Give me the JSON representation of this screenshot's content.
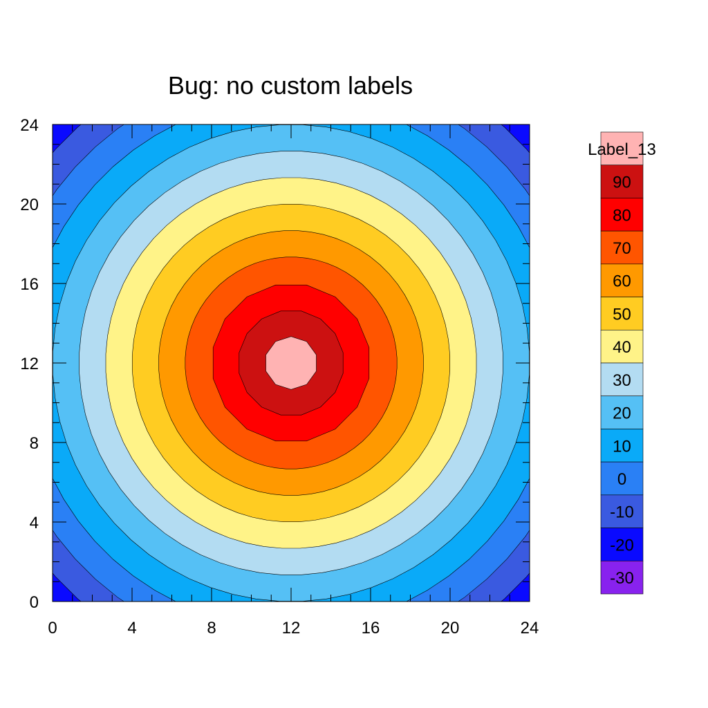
{
  "chart_data": {
    "type": "heatmap",
    "subtype": "filled-contour",
    "title": "Bug: no custom labels",
    "xlabel": "",
    "ylabel": "",
    "xlim": [
      0,
      24
    ],
    "ylim": [
      0,
      24
    ],
    "x_ticks": [
      0,
      4,
      8,
      12,
      16,
      20,
      24
    ],
    "y_ticks": [
      0,
      4,
      8,
      12,
      16,
      20,
      24
    ],
    "x_tick_labels": [
      "0",
      "4",
      "8",
      "12",
      "16",
      "20",
      "24"
    ],
    "y_tick_labels": [
      "0",
      "4",
      "8",
      "12",
      "16",
      "20",
      "24"
    ],
    "grid": false,
    "field": {
      "shape": "radial",
      "center": [
        12,
        12
      ],
      "value_at_center": 100,
      "value_change_per_unit_radius": -7.5
    },
    "contour_levels": [
      -30,
      -20,
      -10,
      0,
      10,
      20,
      30,
      40,
      50,
      60,
      70,
      80,
      90
    ],
    "legend": {
      "position": "right",
      "orientation": "vertical",
      "top_label": "Label_13",
      "labels": [
        "90",
        "80",
        "70",
        "60",
        "50",
        "40",
        "30",
        "20",
        "10",
        "0",
        "-10",
        "-20",
        "-30"
      ],
      "colors_top_to_bottom": [
        "#ffb3b3",
        "#cc1111",
        "#ff0000",
        "#ff5500",
        "#ff9900",
        "#ffcc22",
        "#fff388",
        "#b3dcf2",
        "#55c0f5",
        "#0aaaf8",
        "#2a80f5",
        "#3a5ae0",
        "#0a0aff",
        "#8822ee"
      ]
    }
  }
}
